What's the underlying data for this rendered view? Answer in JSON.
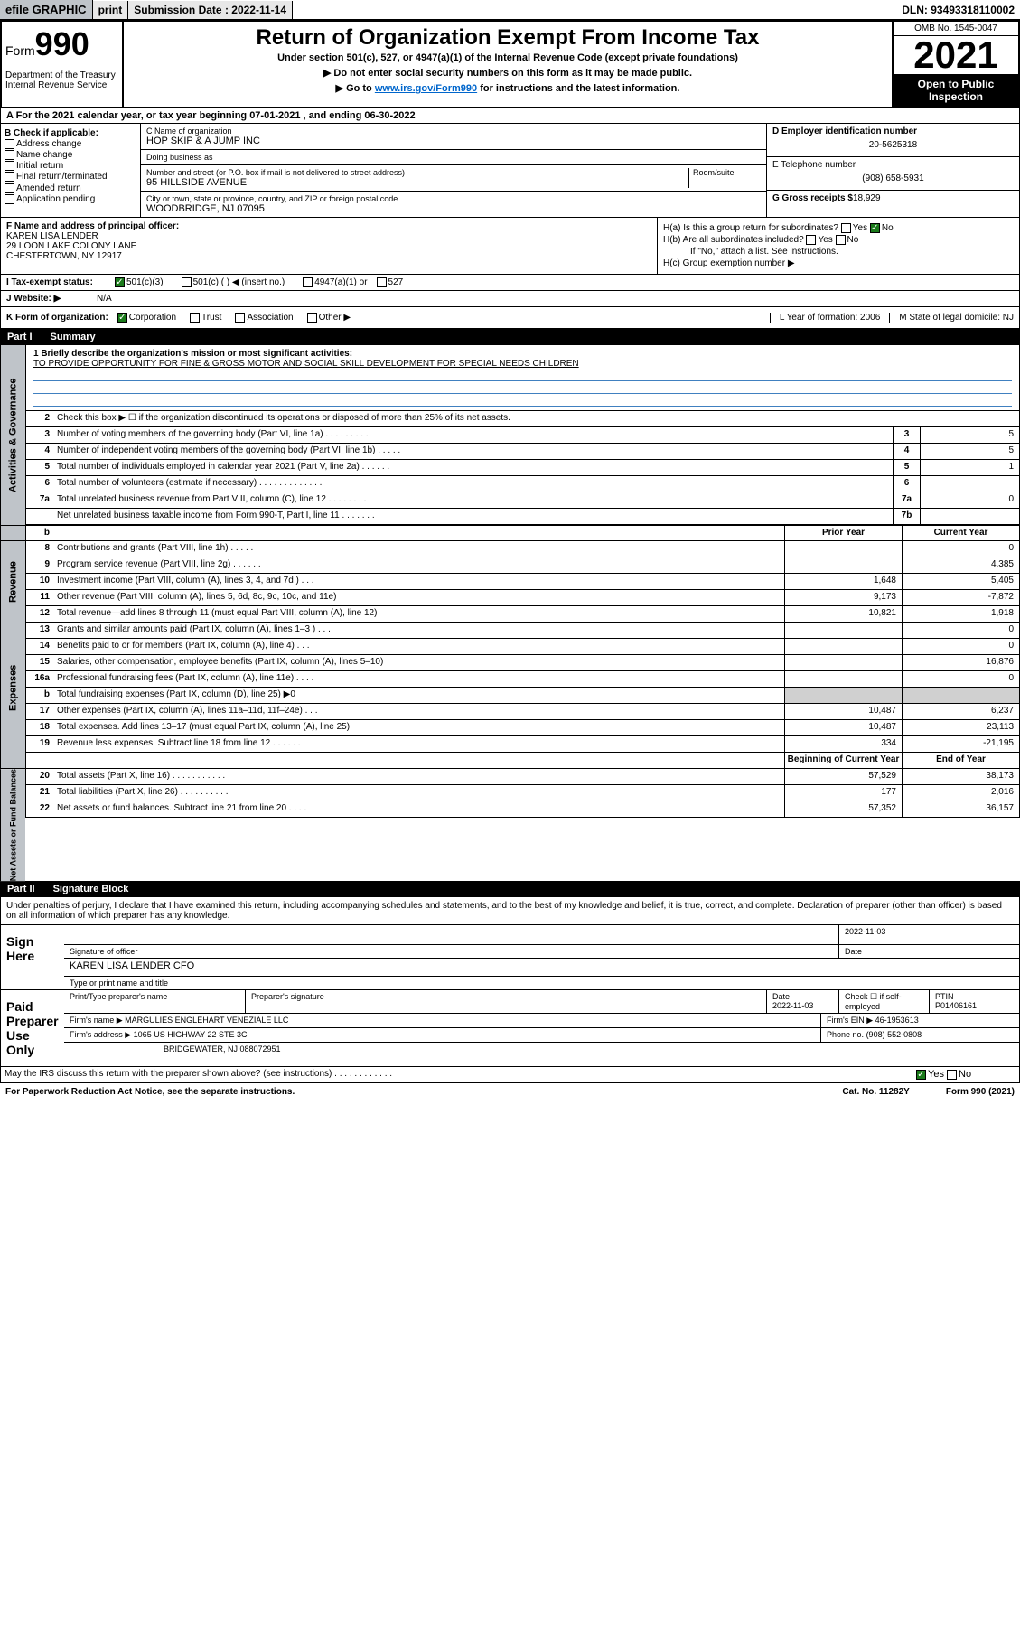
{
  "topbar": {
    "efile": "efile GRAPHIC",
    "print": "print",
    "subdate_label": "Submission Date : 2022-11-14",
    "dln": "DLN: 93493318110002"
  },
  "header": {
    "form_label": "Form",
    "form_num": "990",
    "dept": "Department of the Treasury Internal Revenue Service",
    "title": "Return of Organization Exempt From Income Tax",
    "sub1": "Under section 501(c), 527, or 4947(a)(1) of the Internal Revenue Code (except private foundations)",
    "sub2a": "▶ Do not enter social security numbers on this form as it may be made public.",
    "sub2b": "▶ Go to ",
    "sub2link": "www.irs.gov/Form990",
    "sub2c": " for instructions and the latest information.",
    "omb": "OMB No. 1545-0047",
    "year": "2021",
    "open_pub": "Open to Public Inspection"
  },
  "row_a": "A For the 2021 calendar year, or tax year beginning 07-01-2021  , and ending 06-30-2022",
  "col_b": {
    "hdr": "B Check if applicable:",
    "opts": [
      "Address change",
      "Name change",
      "Initial return",
      "Final return/terminated",
      "Amended return",
      "Application pending"
    ]
  },
  "col_c": {
    "name_label": "C Name of organization",
    "name": "HOP SKIP & A JUMP INC",
    "dba_label": "Doing business as",
    "dba": "",
    "addr_label": "Number and street (or P.O. box if mail is not delivered to street address)",
    "room_label": "Room/suite",
    "addr": "95 HILLSIDE AVENUE",
    "city_label": "City or town, state or province, country, and ZIP or foreign postal code",
    "city": "WOODBRIDGE, NJ  07095"
  },
  "col_de": {
    "d_label": "D Employer identification number",
    "d_val": "20-5625318",
    "e_label": "E Telephone number",
    "e_val": "(908) 658-5931",
    "g_label": "G Gross receipts $",
    "g_val": "18,929"
  },
  "col_f": {
    "label": "F Name and address of principal officer:",
    "name": "KAREN LISA LENDER",
    "addr1": "29 LOON LAKE COLONY LANE",
    "addr2": "CHESTERTOWN, NY  12917"
  },
  "col_h": {
    "ha": "H(a)  Is this a group return for subordinates?",
    "ha_yes": "Yes",
    "ha_no": "No",
    "hb": "H(b)  Are all subordinates included?",
    "hb_yes": "Yes",
    "hb_no": "No",
    "hb_note": "If \"No,\" attach a list. See instructions.",
    "hc": "H(c)  Group exemption number ▶"
  },
  "row_i": {
    "label": "I  Tax-exempt status:",
    "o1": "501(c)(3)",
    "o2": "501(c) (  ) ◀ (insert no.)",
    "o3": "4947(a)(1) or",
    "o4": "527"
  },
  "row_j": {
    "label": "J  Website: ▶",
    "val": "N/A"
  },
  "row_k": {
    "label": "K Form of organization:",
    "o1": "Corporation",
    "o2": "Trust",
    "o3": "Association",
    "o4": "Other ▶",
    "l": "L Year of formation: 2006",
    "m": "M State of legal domicile: NJ"
  },
  "part1": {
    "num": "Part I",
    "title": "Summary"
  },
  "summary": {
    "l1_label": "1  Briefly describe the organization's mission or most significant activities:",
    "l1_text": "TO PROVIDE OPPORTUNITY FOR FINE & GROSS MOTOR AND SOCIAL SKILL DEVELOPMENT FOR SPECIAL NEEDS CHILDREN",
    "l2": "Check this box ▶ ☐  if the organization discontinued its operations or disposed of more than 25% of its net assets.",
    "lines_simple": [
      {
        "n": "3",
        "t": "Number of voting members of the governing body (Part VI, line 1a)  .  .  .  .  .  .  .  .  .",
        "box": "3",
        "v": "5"
      },
      {
        "n": "4",
        "t": "Number of independent voting members of the governing body (Part VI, line 1b)  .  .  .  .  .",
        "box": "4",
        "v": "5"
      },
      {
        "n": "5",
        "t": "Total number of individuals employed in calendar year 2021 (Part V, line 2a)  .  .  .  .  .  .",
        "box": "5",
        "v": "1"
      },
      {
        "n": "6",
        "t": "Total number of volunteers (estimate if necessary)  .  .  .  .  .  .  .  .  .  .  .  .  .",
        "box": "6",
        "v": ""
      },
      {
        "n": "7a",
        "t": "Total unrelated business revenue from Part VIII, column (C), line 12  .  .  .  .  .  .  .  .",
        "box": "7a",
        "v": "0"
      },
      {
        "n": "",
        "t": "Net unrelated business taxable income from Form 990-T, Part I, line 11  .  .  .  .  .  .  .",
        "box": "7b",
        "v": ""
      }
    ],
    "col_prior": "Prior Year",
    "col_curr": "Current Year",
    "rev_lines": [
      {
        "n": "8",
        "t": "Contributions and grants (Part VIII, line 1h)  .  .  .  .  .  .",
        "p": "",
        "c": "0"
      },
      {
        "n": "9",
        "t": "Program service revenue (Part VIII, line 2g)  .  .  .  .  .  .",
        "p": "",
        "c": "4,385"
      },
      {
        "n": "10",
        "t": "Investment income (Part VIII, column (A), lines 3, 4, and 7d )  .  .  .",
        "p": "1,648",
        "c": "5,405"
      },
      {
        "n": "11",
        "t": "Other revenue (Part VIII, column (A), lines 5, 6d, 8c, 9c, 10c, and 11e)",
        "p": "9,173",
        "c": "-7,872"
      },
      {
        "n": "12",
        "t": "Total revenue—add lines 8 through 11 (must equal Part VIII, column (A), line 12)",
        "p": "10,821",
        "c": "1,918"
      }
    ],
    "exp_lines": [
      {
        "n": "13",
        "t": "Grants and similar amounts paid (Part IX, column (A), lines 1–3 )  .  .  .",
        "p": "",
        "c": "0"
      },
      {
        "n": "14",
        "t": "Benefits paid to or for members (Part IX, column (A), line 4)  .  .  .",
        "p": "",
        "c": "0"
      },
      {
        "n": "15",
        "t": "Salaries, other compensation, employee benefits (Part IX, column (A), lines 5–10)",
        "p": "",
        "c": "16,876"
      },
      {
        "n": "16a",
        "t": "Professional fundraising fees (Part IX, column (A), line 11e)  .  .  .  .",
        "p": "",
        "c": "0"
      },
      {
        "n": "b",
        "t": "Total fundraising expenses (Part IX, column (D), line 25) ▶0",
        "p": "shade",
        "c": "shade"
      },
      {
        "n": "17",
        "t": "Other expenses (Part IX, column (A), lines 11a–11d, 11f–24e)  .  .  .",
        "p": "10,487",
        "c": "6,237"
      },
      {
        "n": "18",
        "t": "Total expenses. Add lines 13–17 (must equal Part IX, column (A), line 25)",
        "p": "10,487",
        "c": "23,113"
      },
      {
        "n": "19",
        "t": "Revenue less expenses. Subtract line 18 from line 12  .  .  .  .  .  .",
        "p": "334",
        "c": "-21,195"
      }
    ],
    "col_beg": "Beginning of Current Year",
    "col_end": "End of Year",
    "na_lines": [
      {
        "n": "20",
        "t": "Total assets (Part X, line 16)  .  .  .  .  .  .  .  .  .  .  .",
        "p": "57,529",
        "c": "38,173"
      },
      {
        "n": "21",
        "t": "Total liabilities (Part X, line 26)  .  .  .  .  .  .  .  .  .  .",
        "p": "177",
        "c": "2,016"
      },
      {
        "n": "22",
        "t": "Net assets or fund balances. Subtract line 21 from line 20  .  .  .  .",
        "p": "57,352",
        "c": "36,157"
      }
    ]
  },
  "sides": {
    "gov": "Activities & Governance",
    "rev": "Revenue",
    "exp": "Expenses",
    "na": "Net Assets or Fund Balances"
  },
  "part2": {
    "num": "Part II",
    "title": "Signature Block"
  },
  "sig_intro": "Under penalties of perjury, I declare that I have examined this return, including accompanying schedules and statements, and to the best of my knowledge and belief, it is true, correct, and complete. Declaration of preparer (other than officer) is based on all information of which preparer has any knowledge.",
  "sign_here": {
    "label": "Sign Here",
    "sig_label": "Signature of officer",
    "date_label": "Date",
    "date": "2022-11-03",
    "name": "KAREN LISA LENDER  CFO",
    "name_label": "Type or print name and title"
  },
  "paid_prep": {
    "label": "Paid Preparer Use Only",
    "c1": "Print/Type preparer's name",
    "c2": "Preparer's signature",
    "c3": "Date",
    "c3v": "2022-11-03",
    "c4": "Check ☐ if self-employed",
    "c5": "PTIN",
    "c5v": "P01406161",
    "firm_label": "Firm's name    ▶",
    "firm": "MARGULIES ENGLEHART VENEZIALE LLC",
    "ein_label": "Firm's EIN ▶",
    "ein": "46-1953613",
    "addr_label": "Firm's address ▶",
    "addr1": "1065 US HIGHWAY 22 STE 3C",
    "addr2": "BRIDGEWATER, NJ  088072951",
    "phone_label": "Phone no.",
    "phone": "(908) 552-0808"
  },
  "discuss": {
    "text": "May the IRS discuss this return with the preparer shown above? (see instructions)  .  .  .  .  .  .  .  .  .  .  .  .",
    "yes": "Yes",
    "no": "No"
  },
  "footer": {
    "left": "For Paperwork Reduction Act Notice, see the separate instructions.",
    "mid": "Cat. No. 11282Y",
    "right": "Form 990 (2021)"
  }
}
